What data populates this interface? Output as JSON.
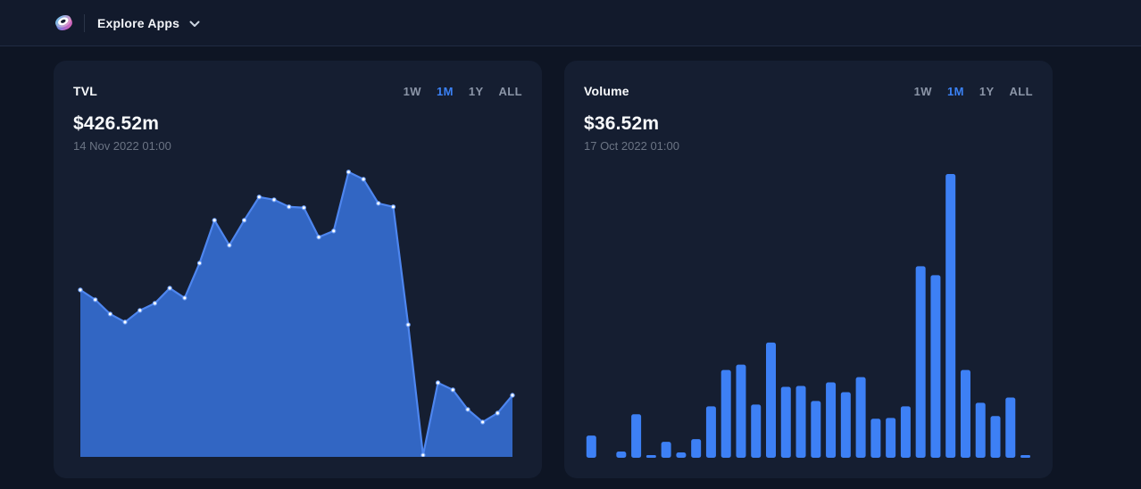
{
  "header": {
    "nav_label": "Explore Apps",
    "logo_icon": "sushi-roll-icon",
    "chevron_icon": "chevron-down-icon"
  },
  "cards": [
    {
      "title": "TVL",
      "value": "$426.52m",
      "date": "14 Nov 2022 01:00",
      "ranges": [
        "1W",
        "1M",
        "1Y",
        "ALL"
      ],
      "active_range": "1M"
    },
    {
      "title": "Volume",
      "value": "$36.52m",
      "date": "17 Oct 2022 01:00",
      "ranges": [
        "1W",
        "1M",
        "1Y",
        "ALL"
      ],
      "active_range": "1M"
    }
  ],
  "chart_data": [
    {
      "type": "area",
      "title": "TVL",
      "headline_value": "$426.52m",
      "headline_date": "14 Nov 2022 01:00",
      "unit": "USD millions (estimated, no axis labels shown)",
      "x_description": "30 daily points over 1 month; no tick labels or grid visible",
      "values": [
        1156,
        1088,
        989,
        933,
        1014,
        1063,
        1168,
        1100,
        1341,
        1638,
        1465,
        1638,
        1799,
        1780,
        1731,
        1725,
        1521,
        1564,
        1972,
        1922,
        1755,
        1731,
        915,
        12,
        513,
        464,
        328,
        241,
        303,
        426.52
      ],
      "ylim": [
        0,
        2020
      ],
      "grid": false,
      "legend": false,
      "markers": true
    },
    {
      "type": "bar",
      "title": "Volume",
      "headline_value": "$36.52m",
      "headline_date": "17 Oct 2022 01:00",
      "unit": "USD millions (estimated, no axis labels shown)",
      "x_description": "30 daily bars over 1 month; no tick labels or grid visible",
      "values": [
        36.5,
        0,
        10.2,
        71.6,
        4.4,
        26.3,
        8.8,
        30.7,
        84.7,
        144.6,
        153.4,
        87.6,
        189.9,
        116.9,
        118.3,
        93.5,
        124.2,
        108.1,
        132.9,
        64.3,
        65.7,
        84.7,
        315.5,
        300.9,
        467.5,
        144.6,
        90.6,
        68.7,
        99.3,
        4.4
      ],
      "ylim": [
        0,
        472
      ],
      "grid": false,
      "legend": false
    }
  ],
  "colors": {
    "page_bg": "#0e1524",
    "header_bg": "#121a2c",
    "header_divider": "#202b42",
    "card_bg": "#151e31",
    "accent_blue": "#3b82f6",
    "area_fill": "#3266c3",
    "line_blue": "#4e86ef",
    "bar_blue": "#3d80f5",
    "marker_white": "#ffffff",
    "marker_ring": "#6d9ef5",
    "inactive_text": "#8b95a7",
    "muted_text": "#6b7484",
    "title_text": "#f8fafc",
    "logo_blue": "#2fb0e8",
    "logo_pink": "#f75ca6"
  }
}
